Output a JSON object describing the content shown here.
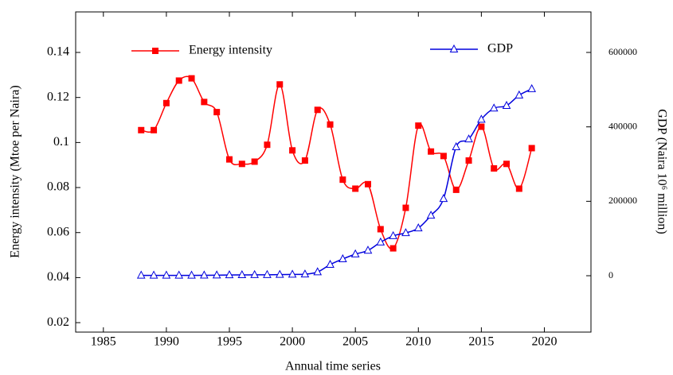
{
  "chart_data": {
    "type": "line",
    "xlabel": "Annual time series",
    "ylabel": "Energy intensity (Mtoe per Naira)",
    "y2label": "GDP (Naira 10⁶ million)",
    "x": [
      1988,
      1989,
      1990,
      1991,
      1992,
      1993,
      1994,
      1995,
      1996,
      1997,
      1998,
      1999,
      2000,
      2001,
      2002,
      2003,
      2004,
      2005,
      2006,
      2007,
      2008,
      2009,
      2010,
      2011,
      2012,
      2013,
      2014,
      2015,
      2016,
      2017,
      2018,
      2019
    ],
    "series": [
      {
        "name": "Energy intensity",
        "color": "#ff0000",
        "marker": "square",
        "values": [
          0.1055,
          0.1055,
          0.1175,
          0.1275,
          0.1285,
          0.118,
          0.1135,
          0.0925,
          0.0905,
          0.0915,
          0.099,
          0.1258,
          0.0965,
          0.092,
          0.1145,
          0.108,
          0.0835,
          0.0795,
          0.0815,
          0.0615,
          0.053,
          0.071,
          0.1075,
          0.096,
          0.094,
          0.079,
          0.092,
          0.107,
          0.0885,
          0.0905,
          0.0795,
          0.0975
        ]
      },
      {
        "name": "GDP",
        "color": "#0000dd",
        "marker": "triangle",
        "axis": "y2",
        "values": [
          1000,
          1000,
          1000,
          1000,
          1000,
          1200,
          1500,
          2000,
          2200,
          2400,
          2600,
          3000,
          3500,
          4000,
          10000,
          30000,
          45000,
          58000,
          68000,
          90000,
          107000,
          115000,
          128000,
          162000,
          207000,
          346000,
          367000,
          420000,
          450000,
          457000,
          485000,
          502000
        ]
      }
    ],
    "xlim": [
      1982.8,
      2023.7
    ],
    "xticks": [
      1985,
      1990,
      1995,
      2000,
      2005,
      2010,
      2015,
      2020
    ],
    "ylim": [
      0.0158,
      0.158
    ],
    "yticks": [
      0.02,
      0.04,
      0.06,
      0.08,
      0.1,
      0.12,
      0.14
    ],
    "y2lim": [
      -151500,
      708900
    ],
    "y2ticks": [
      0,
      200000,
      400000,
      600000
    ]
  }
}
